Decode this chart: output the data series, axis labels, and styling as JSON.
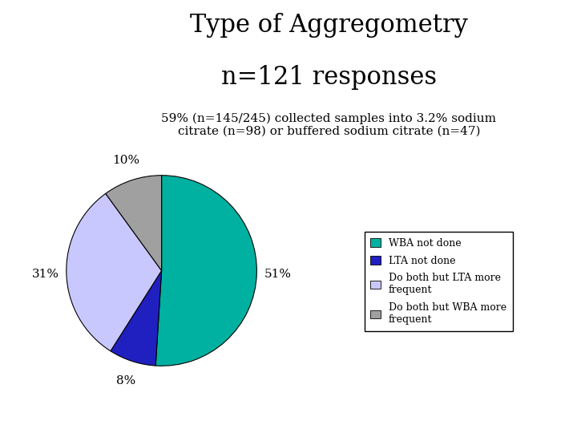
{
  "title_line1": "Type of Aggregometry",
  "title_line2": "n=121 responses",
  "subtitle": "59% (n=145/245) collected samples into 3.2% sodium\ncitrate (n=98) or buffered sodium citrate (n=47)",
  "slices": [
    51,
    8,
    31,
    10
  ],
  "labels": [
    "51%",
    "8%",
    "31%",
    "10%"
  ],
  "colors": [
    "#00B0A0",
    "#2020C0",
    "#C8C8FF",
    "#A0A0A0"
  ],
  "legend_labels": [
    "WBA not done",
    "LTA not done",
    "Do both but LTA more\nfrequent",
    "Do both but WBA more\nfrequent"
  ],
  "background_color": "#FFFFFF",
  "title_fontsize": 22,
  "subtitle_fontsize": 11,
  "label_fontsize": 11,
  "legend_fontsize": 9
}
